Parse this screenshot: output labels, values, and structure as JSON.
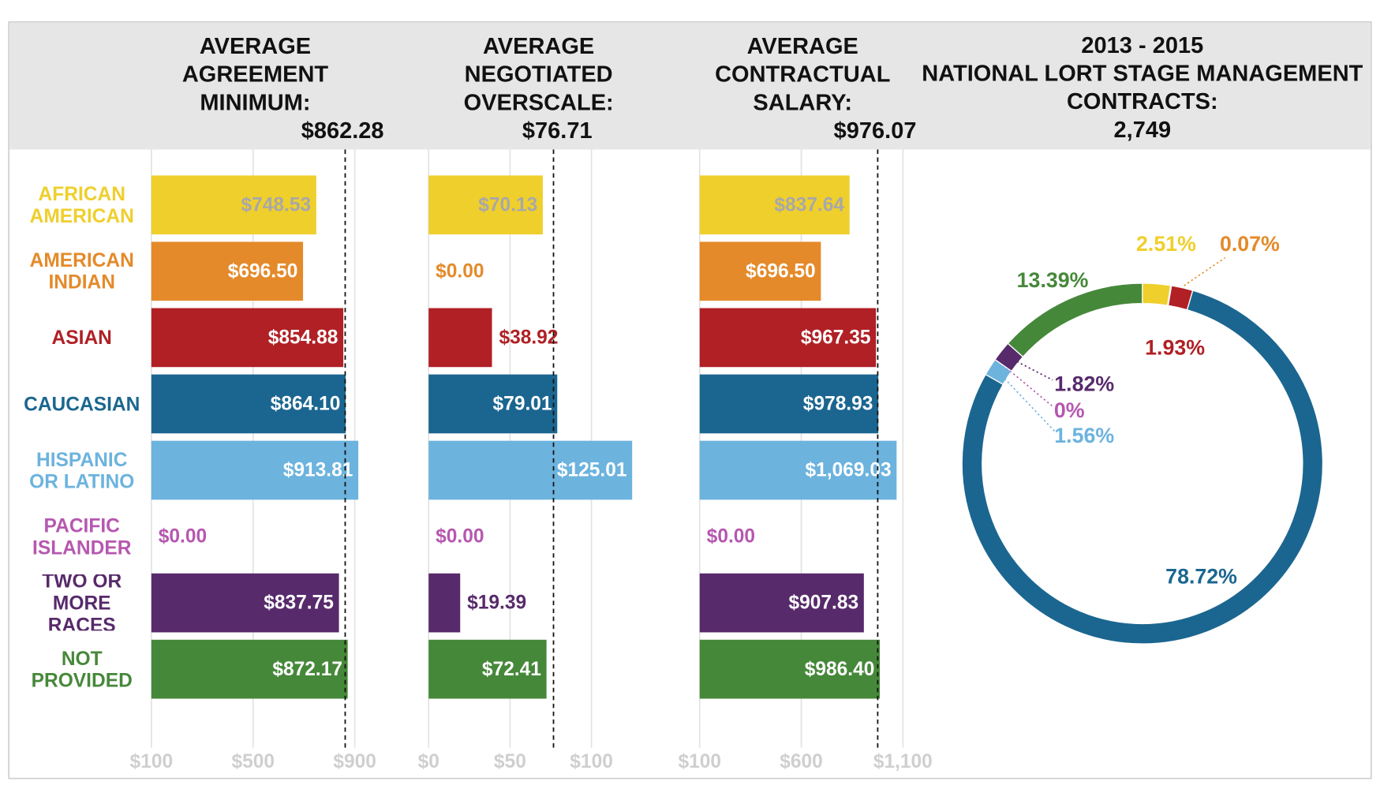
{
  "chart_data": [
    {
      "type": "bar",
      "categories": [
        "AFRICAN\nAMERICAN",
        "AMERICAN\nINDIAN",
        "ASIAN",
        "CAUCASIAN",
        "HISPANIC\nOR LATINO",
        "PACIFIC\nISLANDER",
        "TWO OR\nMORE RACES",
        "NOT\nPROVIDED"
      ],
      "colors": [
        "#efcf2c",
        "#e48a2a",
        "#b02025",
        "#1b6690",
        "#6cb3de",
        "#b657b0",
        "#572a6b",
        "#46883a"
      ],
      "grid": true,
      "panels": [
        {
          "title": "AVERAGE\nAGREEMENT\nMINIMUM:",
          "reference": {
            "value": 862.28,
            "label": "$862.28"
          },
          "values": [
            748.53,
            696.5,
            854.88,
            864.1,
            913.81,
            0,
            837.75,
            872.17
          ],
          "value_labels": [
            "$748.53",
            "$696.50",
            "$854.88",
            "$864.10",
            "$913.81",
            "$0.00",
            "$837.75",
            "$872.17"
          ],
          "xlim": [
            100,
            1000
          ],
          "xticks": [
            {
              "value": 100,
              "label": "$100"
            },
            {
              "value": 500,
              "label": "$500"
            },
            {
              "value": 900,
              "label": "$900"
            }
          ]
        },
        {
          "title": "AVERAGE\nNEGOTIATED\nOVERSCALE:",
          "reference": {
            "value": 76.71,
            "label": "$76.71"
          },
          "values": [
            70.13,
            0,
            38.92,
            79.01,
            125.01,
            0,
            19.39,
            72.41
          ],
          "value_labels": [
            "$70.13",
            "$0.00",
            "$38.92",
            "$79.01",
            "$125.01",
            "$0.00",
            "$19.39",
            "$72.41"
          ],
          "xlim": [
            0,
            140
          ],
          "xticks": [
            {
              "value": 0,
              "label": "$0"
            },
            {
              "value": 50,
              "label": "$50"
            },
            {
              "value": 100,
              "label": "$100"
            }
          ]
        },
        {
          "title": "AVERAGE\nCONTRACTUAL\nSALARY:",
          "reference": {
            "value": 976.07,
            "label": "$976.07"
          },
          "values": [
            837.64,
            696.5,
            967.35,
            978.93,
            1069.03,
            0,
            907.83,
            986.4
          ],
          "value_labels": [
            "$837.64",
            "$696.50",
            "$967.35",
            "$978.93",
            "$1,069.03",
            "$0.00",
            "$907.83",
            "$986.40"
          ],
          "xlim": [
            100,
            1200
          ],
          "xticks": [
            {
              "value": 100,
              "label": "$100"
            },
            {
              "value": 600,
              "label": "$600"
            },
            {
              "value": 1100,
              "label": "$1,100"
            }
          ]
        }
      ]
    },
    {
      "type": "pie",
      "title": "2013 - 2015\nNATIONAL LORT STAGE MANAGEMENT\nCONTRACTS:\n2,749",
      "values": [
        2.51,
        0.07,
        1.93,
        78.72,
        1.56,
        0,
        1.82,
        13.39
      ],
      "value_labels": [
        "2.51%",
        "0.07%",
        "1.93%",
        "78.72%",
        "1.56%",
        "0%",
        "1.82%",
        "13.39%"
      ],
      "colors": [
        "#efcf2c",
        "#e48a2a",
        "#b02025",
        "#1b6690",
        "#6cb3de",
        "#b657b0",
        "#572a6b",
        "#46883a"
      ]
    }
  ]
}
